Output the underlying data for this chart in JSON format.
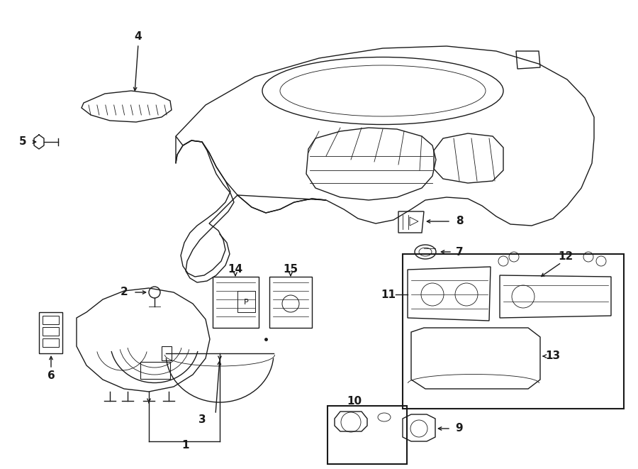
{
  "bg_color": "#ffffff",
  "lc": "#1a1a1a",
  "lw": 1.0,
  "lt": 0.6,
  "lb": 1.5,
  "fs": 11,
  "dpi": 100,
  "fw": 9.0,
  "fh": 6.61
}
